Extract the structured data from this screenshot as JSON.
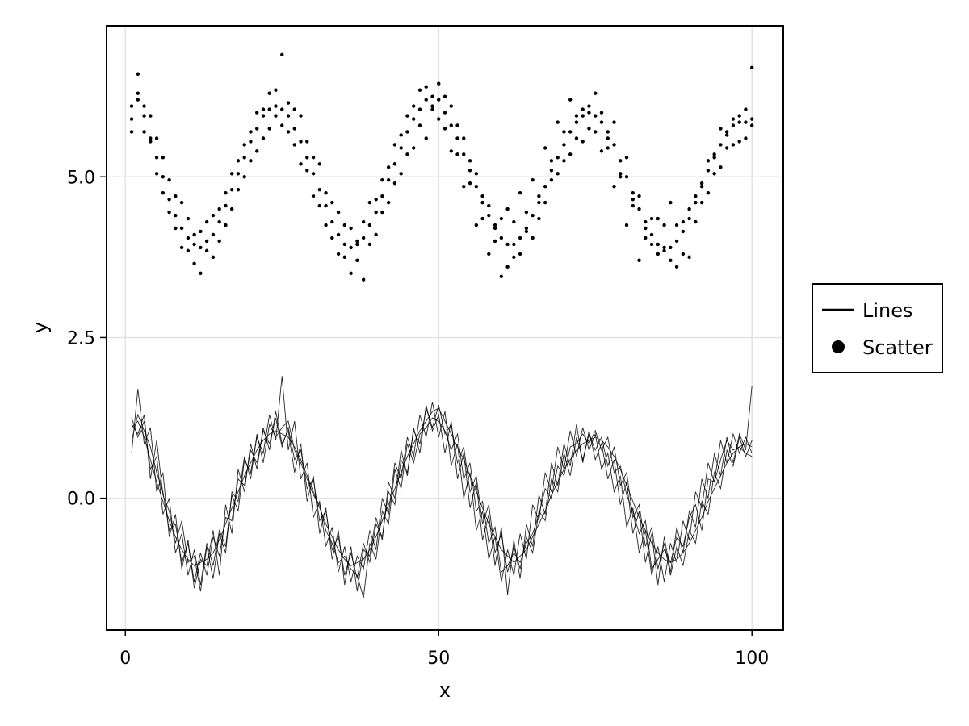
{
  "chart_data": {
    "type": "line",
    "title": "",
    "xlabel": "x",
    "ylabel": "y",
    "xlim": [
      -3,
      105
    ],
    "ylim": [
      -2.05,
      7.35
    ],
    "xticks": [
      0,
      50,
      100
    ],
    "xtick_labels": [
      "0",
      "50",
      "100"
    ],
    "yticks": [
      0,
      2.5,
      5
    ],
    "ytick_labels": [
      "0.0",
      "2.5",
      "5.0"
    ],
    "grid": true,
    "legend": {
      "position": "right",
      "entries": [
        {
          "label": "Lines",
          "marker": "line"
        },
        {
          "label": "Scatter",
          "marker": "circle"
        }
      ]
    },
    "series": [
      {
        "name": "Lines",
        "kind": "line",
        "color": "#000000",
        "x": [
          1,
          2,
          3,
          4,
          5,
          6,
          7,
          8,
          9,
          10,
          11,
          12,
          13,
          14,
          15,
          16,
          17,
          18,
          19,
          20,
          21,
          22,
          23,
          24,
          25,
          26,
          27,
          28,
          29,
          30,
          31,
          32,
          33,
          34,
          35,
          36,
          37,
          38,
          39,
          40,
          41,
          42,
          43,
          44,
          45,
          46,
          47,
          48,
          49,
          50,
          51,
          52,
          53,
          54,
          55,
          56,
          57,
          58,
          59,
          60,
          61,
          62,
          63,
          64,
          65,
          66,
          67,
          68,
          69,
          70,
          71,
          72,
          73,
          74,
          75,
          76,
          77,
          78,
          79,
          80,
          81,
          82,
          83,
          84,
          85,
          86,
          87,
          88,
          89,
          90,
          91,
          92,
          93,
          94,
          95,
          96,
          97,
          98,
          99,
          100
        ],
        "lines": [
          [
            1.1,
            1.2,
            0.95,
            0.6,
            0.25,
            -0.05,
            -0.35,
            -0.6,
            -0.8,
            -0.95,
            -1.05,
            -1.0,
            -0.95,
            -0.85,
            -0.65,
            -0.4,
            -0.15,
            0.1,
            0.35,
            0.55,
            0.75,
            0.9,
            1.0,
            1.05,
            1.0,
            0.95,
            0.8,
            0.6,
            0.35,
            0.1,
            -0.15,
            -0.4,
            -0.6,
            -0.8,
            -0.95,
            -1.05,
            -1.0,
            -0.95,
            -0.8,
            -0.6,
            -0.35,
            -0.1,
            0.15,
            0.4,
            0.65,
            0.85,
            1.05,
            1.2,
            1.35,
            1.4,
            1.2,
            1.0,
            0.8,
            0.6,
            0.35,
            0.1,
            -0.15,
            -0.4,
            -0.6,
            -0.8,
            -0.9,
            -1.0,
            -0.9,
            -0.8,
            -0.6,
            -0.4,
            -0.2,
            0.05,
            0.25,
            0.45,
            0.6,
            0.75,
            0.85,
            0.9,
            0.95,
            0.9,
            0.8,
            0.65,
            0.45,
            0.2,
            -0.05,
            -0.3,
            -0.5,
            -0.7,
            -0.85,
            -0.95,
            -1.0,
            -0.95,
            -0.85,
            -0.7,
            -0.5,
            -0.3,
            -0.05,
            0.15,
            0.35,
            0.55,
            0.7,
            0.8,
            0.85,
            0.8
          ],
          [
            0.9,
            1.3,
            1.05,
            0.8,
            0.4,
            0.1,
            -0.5,
            -0.4,
            -1.0,
            -0.7,
            -1.3,
            -0.85,
            -1.2,
            -0.6,
            -0.9,
            -0.3,
            -0.35,
            0.3,
            0.2,
            0.75,
            0.55,
            1.05,
            0.85,
            1.25,
            0.8,
            1.1,
            0.6,
            0.75,
            0.15,
            0.3,
            -0.35,
            -0.2,
            -0.8,
            -0.6,
            -1.2,
            -0.85,
            -1.25,
            -0.7,
            -1.0,
            -0.4,
            -0.6,
            0.1,
            -0.1,
            0.6,
            0.4,
            1.05,
            0.85,
            1.4,
            1.1,
            1.45,
            1.0,
            1.15,
            0.55,
            0.8,
            0.1,
            0.35,
            -0.4,
            -0.1,
            -0.85,
            -0.55,
            -1.15,
            -0.75,
            -1.1,
            -0.6,
            -0.85,
            -0.2,
            -0.35,
            0.3,
            0.1,
            0.7,
            0.35,
            0.95,
            0.6,
            1.0,
            0.75,
            0.95,
            0.5,
            0.8,
            0.2,
            0.4,
            -0.3,
            -0.1,
            -0.75,
            -0.45,
            -1.1,
            -0.7,
            -1.2,
            -0.75,
            -1.05,
            -0.5,
            -0.7,
            -0.05,
            -0.25,
            0.4,
            0.15,
            0.75,
            0.5,
            0.95,
            0.65,
            0.9
          ],
          [
            1.25,
            0.95,
            1.2,
            0.45,
            0.65,
            -0.25,
            0.0,
            -0.85,
            -0.55,
            -1.2,
            -0.8,
            -1.35,
            -0.7,
            -1.05,
            -0.5,
            -0.75,
            0.05,
            -0.2,
            0.6,
            0.4,
            0.95,
            0.7,
            1.3,
            0.9,
            1.9,
            0.75,
            1.2,
            0.3,
            0.55,
            -0.3,
            -0.05,
            -0.75,
            -0.45,
            -1.15,
            -0.75,
            -1.3,
            -0.9,
            -1.1,
            -0.5,
            -0.8,
            0.0,
            -0.25,
            0.55,
            0.3,
            0.95,
            0.65,
            1.3,
            0.95,
            1.5,
            0.95,
            1.35,
            0.5,
            0.85,
            0.0,
            0.4,
            -0.5,
            -0.2,
            -0.95,
            -0.6,
            -1.3,
            -0.8,
            -1.2,
            -0.55,
            -0.95,
            -0.1,
            -0.35,
            0.4,
            0.1,
            0.8,
            0.45,
            1.05,
            0.65,
            1.1,
            0.75,
            1.0,
            0.45,
            0.7,
            0.1,
            0.35,
            -0.45,
            -0.15,
            -0.85,
            -0.5,
            -1.2,
            -0.75,
            -1.3,
            -0.7,
            -1.0,
            -0.35,
            -0.65,
            0.1,
            -0.15,
            0.55,
            0.25,
            0.9,
            0.55,
            1.0,
            0.7,
            0.95,
            0.7
          ],
          [
            0.7,
            1.7,
            0.85,
            1.1,
            0.1,
            0.4,
            -0.6,
            -0.25,
            -1.1,
            -0.65,
            -1.4,
            -0.95,
            -1.05,
            -0.5,
            -1.2,
            -0.1,
            -0.55,
            0.45,
            0.1,
            0.85,
            0.45,
            1.1,
            0.75,
            1.35,
            0.85,
            1.05,
            0.4,
            0.85,
            -0.05,
            0.35,
            -0.55,
            -0.15,
            -0.95,
            -0.5,
            -1.35,
            -0.75,
            -1.45,
            -0.8,
            -0.9,
            -0.3,
            -0.65,
            0.25,
            0.0,
            0.75,
            0.35,
            1.1,
            0.7,
            1.45,
            1.05,
            1.3,
            0.7,
            1.2,
            0.3,
            0.7,
            -0.15,
            0.25,
            -0.65,
            -0.25,
            -1.05,
            -0.45,
            -1.5,
            -0.65,
            -1.25,
            -0.4,
            -0.75,
            0.05,
            -0.25,
            0.55,
            0.2,
            0.85,
            0.5,
            1.15,
            0.55,
            1.05,
            0.6,
            0.85,
            0.3,
            0.6,
            -0.1,
            0.25,
            -0.55,
            -0.2,
            -1.0,
            -0.55,
            -1.35,
            -0.6,
            -1.15,
            -0.45,
            -0.85,
            -0.2,
            -0.45,
            0.3,
            0.0,
            0.7,
            0.35,
            0.95,
            0.55,
            1.0,
            0.75,
            1.75
          ],
          [
            1.15,
            1.0,
            1.3,
            0.3,
            0.9,
            0.05,
            -0.2,
            -0.7,
            -0.35,
            -1.0,
            -0.9,
            -1.45,
            -0.75,
            -1.25,
            -0.55,
            -0.85,
            0.1,
            -0.05,
            0.65,
            0.3,
            1.0,
            0.55,
            1.15,
            0.95,
            1.1,
            1.2,
            0.75,
            0.55,
            0.3,
            0.05,
            -0.1,
            -0.5,
            -0.7,
            -1.0,
            -0.9,
            -1.1,
            -1.2,
            -1.55,
            -0.7,
            -0.95,
            -0.2,
            -0.4,
            0.45,
            0.15,
            0.85,
            0.55,
            1.0,
            1.1,
            1.25,
            1.2,
            1.05,
            0.75,
            1.0,
            0.3,
            0.55,
            -0.2,
            -0.05,
            -0.7,
            -0.45,
            -1.15,
            -1.05,
            -0.85,
            -1.0,
            -0.7,
            -0.55,
            -0.25,
            0.15,
            0.0,
            0.5,
            0.35,
            0.8,
            0.85,
            1.0,
            0.85,
            1.05,
            0.75,
            0.95,
            0.4,
            0.5,
            0.05,
            -0.2,
            -0.55,
            -0.35,
            -1.1,
            -0.95,
            -0.8,
            -1.0,
            -0.6,
            -0.75,
            -0.3,
            -0.1,
            -0.5,
            0.3,
            0.25,
            0.6,
            0.9,
            0.75,
            0.8,
            0.7,
            0.65
          ]
        ]
      },
      {
        "name": "Scatter",
        "kind": "scatter",
        "color": "#000000",
        "x": [
          1,
          2,
          3,
          4,
          5,
          6,
          7,
          8,
          9,
          10,
          11,
          12,
          13,
          14,
          15,
          16,
          17,
          18,
          19,
          20,
          21,
          22,
          23,
          24,
          25,
          26,
          27,
          28,
          29,
          30,
          31,
          32,
          33,
          34,
          35,
          36,
          37,
          38,
          39,
          40,
          41,
          42,
          43,
          44,
          45,
          46,
          47,
          48,
          49,
          50,
          51,
          52,
          53,
          54,
          55,
          56,
          57,
          58,
          59,
          60,
          61,
          62,
          63,
          64,
          65,
          66,
          67,
          68,
          69,
          70,
          71,
          72,
          73,
          74,
          75,
          76,
          77,
          78,
          79,
          80,
          81,
          82,
          83,
          84,
          85,
          86,
          87,
          88,
          89,
          90,
          91,
          92,
          93,
          94,
          95,
          96,
          97,
          98,
          99,
          100
        ],
        "points": [
          [
            5.9,
            6.2,
            5.95,
            5.55,
            5.3,
            5.0,
            4.65,
            4.4,
            4.2,
            4.05,
            3.95,
            3.9,
            4.0,
            4.1,
            4.3,
            4.55,
            4.8,
            5.05,
            5.3,
            5.55,
            5.75,
            5.95,
            6.05,
            6.1,
            6.05,
            5.95,
            5.75,
            5.55,
            5.3,
            5.05,
            4.8,
            4.55,
            4.3,
            4.1,
            3.95,
            3.9,
            3.95,
            4.05,
            4.25,
            4.45,
            4.7,
            4.95,
            5.2,
            5.45,
            5.7,
            5.9,
            6.05,
            6.2,
            6.25,
            6.2,
            6.0,
            5.8,
            5.6,
            5.35,
            5.1,
            4.85,
            4.6,
            4.4,
            4.2,
            4.05,
            3.95,
            3.95,
            4.05,
            4.2,
            4.4,
            4.6,
            4.85,
            5.1,
            5.3,
            5.5,
            5.7,
            5.85,
            5.95,
            6.0,
            5.95,
            5.85,
            5.7,
            5.5,
            5.25,
            5.0,
            4.75,
            4.5,
            4.3,
            4.1,
            3.95,
            3.9,
            3.9,
            4.0,
            4.15,
            4.35,
            4.6,
            4.85,
            5.1,
            5.3,
            5.5,
            5.65,
            5.8,
            5.85,
            5.85,
            5.8
          ],
          [
            6.1,
            6.3,
            5.7,
            5.95,
            5.05,
            5.3,
            4.45,
            4.7,
            3.9,
            4.35,
            3.65,
            4.15,
            3.85,
            4.4,
            4.0,
            4.75,
            4.5,
            5.25,
            5.0,
            5.7,
            5.4,
            6.05,
            5.75,
            6.35,
            5.8,
            6.15,
            5.5,
            5.95,
            5.1,
            5.3,
            4.55,
            4.75,
            4.05,
            4.45,
            3.75,
            4.2,
            3.7,
            4.3,
            3.95,
            4.65,
            4.45,
            5.15,
            4.9,
            5.65,
            5.35,
            6.1,
            5.8,
            6.4,
            6.05,
            6.45,
            5.75,
            6.1,
            5.35,
            5.6,
            4.9,
            5.05,
            4.35,
            4.55,
            4.0,
            4.35,
            3.6,
            4.3,
            3.8,
            4.45,
            4.05,
            4.7,
            4.6,
            5.25,
            5.05,
            5.7,
            5.35,
            5.95,
            5.55,
            6.1,
            5.7,
            6.0,
            5.45,
            5.85,
            5.05,
            5.3,
            4.55,
            4.7,
            4.05,
            4.35,
            3.8,
            4.25,
            3.7,
            4.25,
            3.8,
            4.5,
            4.3,
            4.9,
            4.75,
            5.35,
            5.15,
            5.7,
            5.5,
            5.95,
            5.6,
            5.9
          ],
          [
            5.7,
            6.6,
            6.1,
            5.6,
            5.6,
            4.75,
            4.95,
            4.2,
            4.6,
            3.85,
            4.1,
            3.5,
            4.3,
            3.75,
            4.5,
            4.25,
            5.05,
            4.8,
            5.5,
            5.25,
            6.0,
            5.6,
            6.3,
            5.95,
            6.9,
            5.7,
            6.05,
            5.2,
            5.55,
            4.7,
            5.2,
            4.25,
            4.6,
            3.8,
            4.25,
            3.5,
            4.0,
            3.4,
            4.6,
            4.1,
            4.95,
            4.6,
            5.5,
            5.05,
            5.95,
            5.45,
            6.35,
            5.6,
            6.1,
            5.9,
            6.25,
            5.4,
            5.8,
            4.85,
            5.25,
            4.25,
            4.7,
            3.8,
            4.25,
            3.45,
            4.5,
            3.75,
            4.75,
            4.15,
            4.95,
            4.35,
            5.45,
            4.95,
            5.85,
            5.25,
            6.2,
            5.6,
            6.05,
            5.75,
            6.3,
            5.4,
            5.6,
            4.85,
            5.0,
            4.25,
            4.65,
            3.7,
            4.2,
            3.95,
            4.35,
            3.85,
            4.6,
            3.6,
            4.3,
            3.75,
            4.7,
            4.6,
            5.25,
            5.05,
            5.75,
            5.45,
            5.9,
            5.55,
            6.05,
            6.7
          ]
        ]
      }
    ]
  }
}
